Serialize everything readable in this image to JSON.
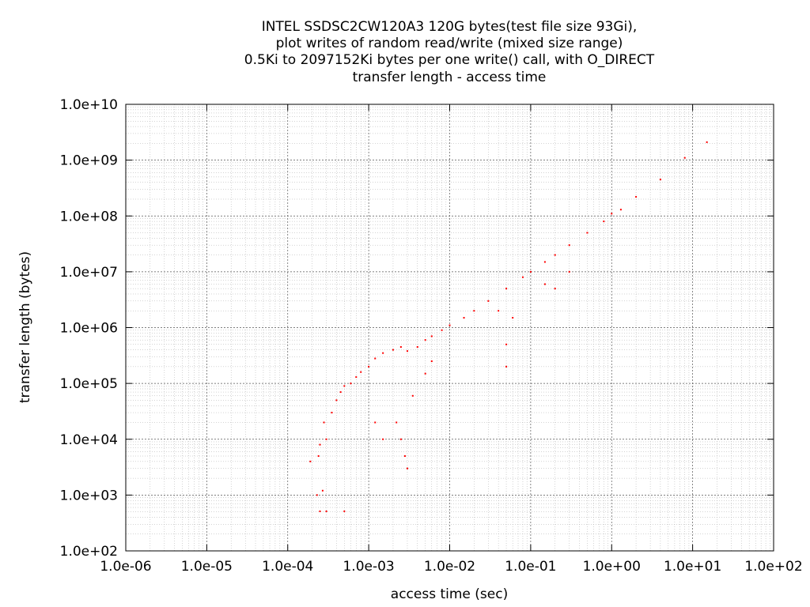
{
  "chart_data": {
    "type": "scatter",
    "title_lines": [
      "INTEL SSDSC2CW120A3 120G bytes(test file size 93Gi),",
      "plot writes of random read/write (mixed size range)",
      "0.5Ki to 2097152Ki bytes per one write() call, with O_DIRECT",
      "transfer length - access time"
    ],
    "xlabel": "access time (sec)",
    "ylabel": "transfer length (bytes)",
    "xscale": "log",
    "yscale": "log",
    "xlim": [
      1e-06,
      100
    ],
    "ylim": [
      100,
      10000000000.0
    ],
    "x_ticks": [
      {
        "value": 1e-06,
        "label": "1.0e-06"
      },
      {
        "value": 1e-05,
        "label": "1.0e-05"
      },
      {
        "value": 0.0001,
        "label": "1.0e-04"
      },
      {
        "value": 0.001,
        "label": "1.0e-03"
      },
      {
        "value": 0.01,
        "label": "1.0e-02"
      },
      {
        "value": 0.1,
        "label": "1.0e-01"
      },
      {
        "value": 1,
        "label": "1.0e+00"
      },
      {
        "value": 10,
        "label": "1.0e+01"
      },
      {
        "value": 100,
        "label": "1.0e+02"
      }
    ],
    "y_ticks": [
      {
        "value": 100,
        "label": "1.0e+02"
      },
      {
        "value": 1000,
        "label": "1.0e+03"
      },
      {
        "value": 10000,
        "label": "1.0e+04"
      },
      {
        "value": 100000,
        "label": "1.0e+05"
      },
      {
        "value": 1000000,
        "label": "1.0e+06"
      },
      {
        "value": 10000000,
        "label": "1.0e+07"
      },
      {
        "value": 100000000,
        "label": "1.0e+08"
      },
      {
        "value": 1000000000,
        "label": "1.0e+09"
      },
      {
        "value": 10000000000,
        "label": "1.0e+10"
      }
    ],
    "grid": true,
    "point_color": "#ff0000",
    "series": [
      {
        "points": [
          [
            0.00025,
            512
          ],
          [
            0.0003,
            512
          ],
          [
            0.0005,
            512
          ],
          [
            0.00023,
            1000
          ],
          [
            0.00027,
            1200
          ],
          [
            0.00019,
            4000
          ],
          [
            0.00024,
            5000
          ],
          [
            0.00025,
            8000
          ],
          [
            0.0003,
            10000
          ],
          [
            0.00028,
            20000
          ],
          [
            0.00035,
            30000
          ],
          [
            0.0004,
            50000
          ],
          [
            0.00045,
            70000
          ],
          [
            0.0005,
            90000
          ],
          [
            0.0006,
            100000
          ],
          [
            0.0007,
            130000
          ],
          [
            0.0008,
            160000
          ],
          [
            0.001,
            200000
          ],
          [
            0.0012,
            280000
          ],
          [
            0.0015,
            350000
          ],
          [
            0.002,
            400000
          ],
          [
            0.0025,
            450000
          ],
          [
            0.003,
            380000
          ],
          [
            0.004,
            450000
          ],
          [
            0.005,
            600000
          ],
          [
            0.006,
            700000
          ],
          [
            0.008,
            900000
          ],
          [
            0.01,
            1100000
          ],
          [
            0.015,
            1500000
          ],
          [
            0.02,
            2000000
          ],
          [
            0.03,
            3000000
          ],
          [
            0.05,
            5000000
          ],
          [
            0.08,
            8000000
          ],
          [
            0.1,
            10000000
          ],
          [
            0.15,
            15000000
          ],
          [
            0.2,
            20000000
          ],
          [
            0.3,
            30000000
          ],
          [
            0.5,
            50000000
          ],
          [
            0.8,
            80000000
          ],
          [
            1.0,
            110000000
          ],
          [
            2.0,
            220000000
          ],
          [
            4.0,
            450000000
          ],
          [
            8.0,
            1100000000
          ],
          [
            15.0,
            2100000000
          ],
          [
            0.0012,
            20000
          ],
          [
            0.0015,
            10000
          ],
          [
            0.0022,
            20000
          ],
          [
            0.0025,
            10000
          ],
          [
            0.0028,
            5000
          ],
          [
            0.003,
            3000
          ],
          [
            0.0035,
            60000
          ],
          [
            0.005,
            150000
          ],
          [
            0.006,
            250000
          ],
          [
            0.04,
            2000000
          ],
          [
            0.06,
            1500000
          ],
          [
            0.05,
            500000
          ],
          [
            0.05,
            200000
          ],
          [
            0.15,
            6000000
          ],
          [
            0.2,
            5000000
          ],
          [
            0.3,
            10000000
          ],
          [
            1.3,
            130000000
          ]
        ]
      }
    ]
  }
}
